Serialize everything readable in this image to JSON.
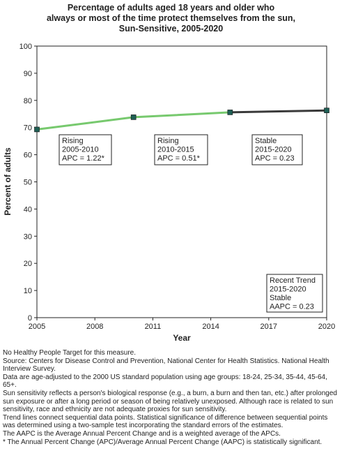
{
  "chart_data": {
    "type": "line",
    "title_lines": [
      "Percentage of adults aged 18 years and older who",
      "always or most of the time protect themselves from the sun,",
      "Sun-Sensitive,  2005-2020"
    ],
    "xlabel": "Year",
    "ylabel": "Percent of adults",
    "xlim": [
      2005,
      2020
    ],
    "ylim": [
      0,
      100
    ],
    "x_ticks": [
      "2005",
      "2008",
      "2011",
      "2014",
      "2017",
      "2020"
    ],
    "y_ticks": [
      "0",
      "10",
      "20",
      "30",
      "40",
      "50",
      "60",
      "70",
      "80",
      "90",
      "100"
    ],
    "grid": false,
    "points": [
      {
        "x": 2005,
        "y": 69.3
      },
      {
        "x": 2010,
        "y": 73.8
      },
      {
        "x": 2015,
        "y": 75.6
      },
      {
        "x": 2020,
        "y": 76.3
      }
    ],
    "segments": [
      {
        "from": 2005,
        "to": 2010,
        "trend": "rising",
        "color": "#77c96e"
      },
      {
        "from": 2010,
        "to": 2015,
        "trend": "rising",
        "color": "#77c96e"
      },
      {
        "from": 2015,
        "to": 2020,
        "trend": "stable",
        "color": "#3a3a3a"
      }
    ],
    "marker_color": "#1f5f55",
    "annotations": [
      {
        "lines": [
          "Rising",
          "2005-2010",
          "APC =  1.22*"
        ]
      },
      {
        "lines": [
          "Rising",
          "2010-2015",
          "APC =  0.51*"
        ]
      },
      {
        "lines": [
          "Stable",
          "2015-2020",
          "APC =  0.23"
        ]
      },
      {
        "lines": [
          "Recent Trend",
          "2015-2020",
          "Stable",
          "AAPC =  0.23"
        ]
      }
    ]
  },
  "notes": [
    "No Healthy People Target for this measure.",
    "Source: Centers for Disease Control and Prevention, National Center for Health Statistics. National Health Interview Survey.",
    "Data are age-adjusted to the 2000 US standard population using age groups: 18-24, 25-34, 35-44, 45-64, 65+.",
    "Sun sensitivity reflects a person's biological response (e.g., a burn, a burn and then tan, etc.) after prolonged sun exposure or after a long period or season of being relatively unexposed. Although race is related to sun sensitivity, race and ethnicity are not adequate proxies for sun sensitivity.",
    "Trend lines connect sequential data points. Statistical significance of difference between sequential points was determined using a two-sample test incorporating the standard errors of the estimates.",
    "The AAPC is the Average Annual Percent Change and is a weighted average of the APCs.",
    "* The Annual Percent Change (APC)/Average Annual Percent Change (AAPC) is statistically significant."
  ]
}
